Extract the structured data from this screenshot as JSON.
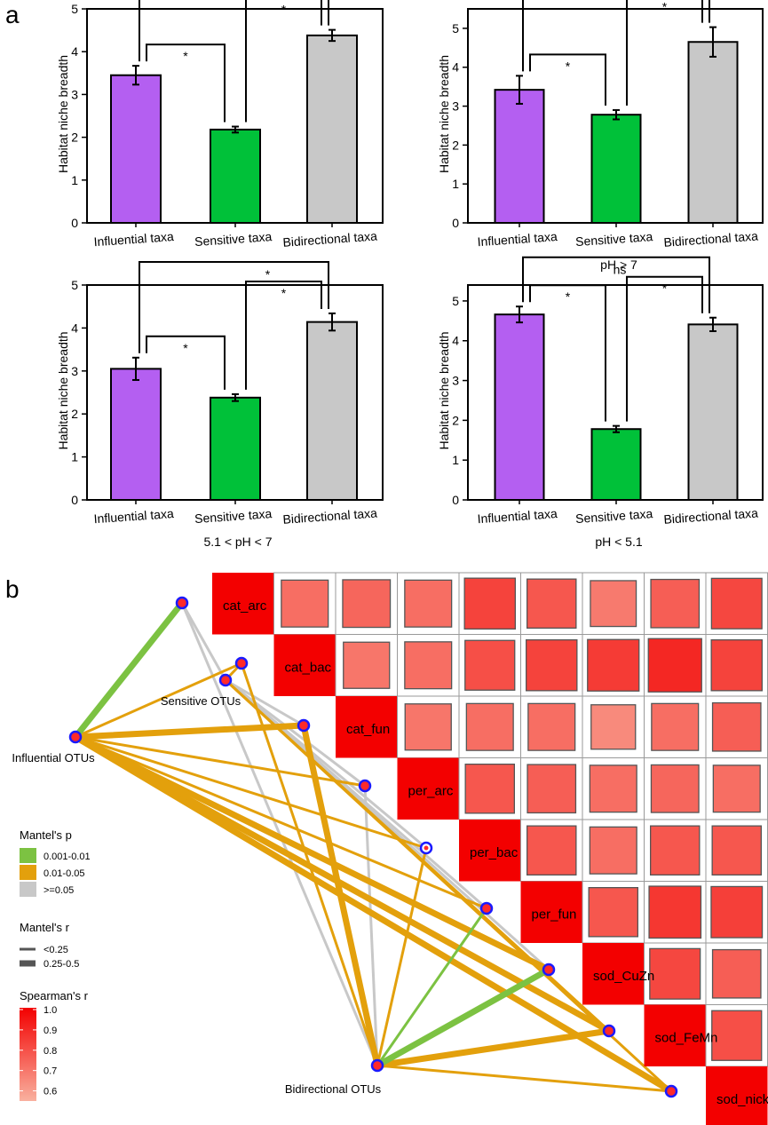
{
  "panel_labels": {
    "a": "a",
    "b": "b"
  },
  "chart_data": [
    {
      "type": "bar",
      "panel": "a1",
      "subtitle": "",
      "ylabel": "Habitat niche breadth",
      "ylim": [
        0,
        5
      ],
      "yticks": [
        "0",
        "1",
        "2",
        "3",
        "4",
        "5"
      ],
      "categories": [
        "Influential taxa",
        "Sensitive taxa",
        "Bidirectional taxa"
      ],
      "values": [
        3.45,
        2.18,
        4.38
      ],
      "errors": [
        0.22,
        0.07,
        0.13
      ],
      "colors": [
        "#b45ff1",
        "#00c139",
        "#c8c8c8"
      ],
      "comparisons": [
        {
          "a": 0,
          "b": 1,
          "label": "*"
        },
        {
          "a": 1,
          "b": 2,
          "label": "*"
        },
        {
          "a": 0,
          "b": 2,
          "label": "*"
        }
      ]
    },
    {
      "type": "bar",
      "panel": "a2",
      "subtitle": "pH > 7",
      "ylabel": "Habitat niche breadth",
      "ylim": [
        0,
        5.5
      ],
      "yticks": [
        "0",
        "1",
        "2",
        "3",
        "4",
        "5"
      ],
      "categories": [
        "Influential taxa",
        "Sensitive taxa",
        "Bidirectional taxa"
      ],
      "values": [
        3.42,
        2.78,
        4.65
      ],
      "errors": [
        0.36,
        0.12,
        0.38
      ],
      "colors": [
        "#b45ff1",
        "#00c139",
        "#c8c8c8"
      ],
      "comparisons": [
        {
          "a": 0,
          "b": 1,
          "label": "*"
        },
        {
          "a": 1,
          "b": 2,
          "label": "*"
        },
        {
          "a": 0,
          "b": 2,
          "label": "*"
        }
      ]
    },
    {
      "type": "bar",
      "panel": "a3",
      "subtitle": "5.1 < pH < 7",
      "ylabel": "Habitat niche breadth",
      "ylim": [
        0,
        5
      ],
      "yticks": [
        "0",
        "1",
        "2",
        "3",
        "4",
        "5"
      ],
      "categories": [
        "Influential taxa",
        "Sensitive taxa",
        "Bidirectional taxa"
      ],
      "values": [
        3.05,
        2.38,
        4.14
      ],
      "errors": [
        0.26,
        0.08,
        0.2
      ],
      "colors": [
        "#b45ff1",
        "#00c139",
        "#c8c8c8"
      ],
      "comparisons": [
        {
          "a": 0,
          "b": 1,
          "label": "*"
        },
        {
          "a": 1,
          "b": 2,
          "label": "*"
        },
        {
          "a": 0,
          "b": 2,
          "label": "*"
        }
      ]
    },
    {
      "type": "bar",
      "panel": "a4",
      "subtitle": "pH < 5.1",
      "ylabel": "Habitat niche breadth",
      "ylim": [
        0,
        5.4
      ],
      "yticks": [
        "0",
        "1",
        "2",
        "3",
        "4",
        "5"
      ],
      "categories": [
        "Influential taxa",
        "Sensitive taxa",
        "Bidirectional taxa"
      ],
      "values": [
        4.66,
        1.78,
        4.41
      ],
      "errors": [
        0.2,
        0.08,
        0.17
      ],
      "colors": [
        "#b45ff1",
        "#00c139",
        "#c8c8c8"
      ],
      "comparisons": [
        {
          "a": 0,
          "b": 1,
          "label": "*"
        },
        {
          "a": 1,
          "b": 2,
          "label": "*"
        },
        {
          "a": 0,
          "b": 2,
          "label": "ns"
        }
      ]
    },
    {
      "type": "heatmap",
      "panel": "b",
      "variables": [
        "cat_arc",
        "cat_bac",
        "cat_fun",
        "per_arc",
        "per_bac",
        "per_fun",
        "sod_CuZn",
        "sod_FeMn",
        "sod_nickel"
      ],
      "correlations": [
        [
          1.0,
          0.72,
          0.74,
          0.72,
          0.83,
          0.78,
          0.69,
          0.76,
          0.82
        ],
        [
          0.72,
          1.0,
          0.7,
          0.72,
          0.8,
          0.83,
          0.85,
          0.9,
          0.83
        ],
        [
          0.74,
          0.7,
          1.0,
          0.7,
          0.72,
          0.72,
          0.65,
          0.72,
          0.76
        ],
        [
          0.72,
          0.72,
          0.7,
          1.0,
          0.78,
          0.76,
          0.72,
          0.74,
          0.72
        ],
        [
          0.83,
          0.8,
          0.72,
          0.78,
          1.0,
          0.78,
          0.72,
          0.78,
          0.78
        ],
        [
          0.78,
          0.83,
          0.72,
          0.76,
          0.78,
          1.0,
          0.78,
          0.86,
          0.84
        ],
        [
          0.69,
          0.85,
          0.65,
          0.72,
          0.72,
          0.78,
          1.0,
          0.82,
          0.76
        ],
        [
          0.76,
          0.9,
          0.72,
          0.74,
          0.78,
          0.86,
          0.82,
          1.0,
          0.8
        ],
        [
          0.82,
          0.83,
          0.76,
          0.72,
          0.78,
          0.84,
          0.76,
          0.8,
          1.0
        ]
      ],
      "groups": [
        "Influential OTUs",
        "Sensitive OTUs",
        "Bidirectional OTUs"
      ],
      "mantel_links": [
        {
          "group": 0,
          "var": 0,
          "p": "0.001-0.01",
          "r": "0.25-0.5"
        },
        {
          "group": 0,
          "var": 1,
          "p": "0.01-0.05",
          "r": "<0.25"
        },
        {
          "group": 0,
          "var": 2,
          "p": "0.01-0.05",
          "r": "0.25-0.5"
        },
        {
          "group": 0,
          "var": 3,
          "p": "0.01-0.05",
          "r": "<0.25"
        },
        {
          "group": 0,
          "var": 4,
          "p": "0.01-0.05",
          "r": "<0.25"
        },
        {
          "group": 0,
          "var": 5,
          "p": "0.01-0.05",
          "r": "<0.25"
        },
        {
          "group": 0,
          "var": 6,
          "p": "0.01-0.05",
          "r": "0.25-0.5"
        },
        {
          "group": 0,
          "var": 7,
          "p": "0.01-0.05",
          "r": "0.25-0.5"
        },
        {
          "group": 0,
          "var": 8,
          "p": "0.01-0.05",
          "r": "0.25-0.5"
        },
        {
          "group": 1,
          "var": 0,
          "p": ">=0.05",
          "r": "<0.25"
        },
        {
          "group": 1,
          "var": 1,
          "p": "0.01-0.05",
          "r": "<0.25"
        },
        {
          "group": 1,
          "var": 2,
          "p": ">=0.05",
          "r": "<0.25"
        },
        {
          "group": 1,
          "var": 3,
          "p": ">=0.05",
          "r": "<0.25"
        },
        {
          "group": 1,
          "var": 4,
          "p": ">=0.05",
          "r": "<0.25"
        },
        {
          "group": 1,
          "var": 5,
          "p": ">=0.05",
          "r": "<0.25"
        },
        {
          "group": 1,
          "var": 6,
          "p": ">=0.05",
          "r": "<0.25"
        },
        {
          "group": 1,
          "var": 7,
          "p": "0.01-0.05",
          "r": "<0.25"
        },
        {
          "group": 1,
          "var": 8,
          "p": "0.01-0.05",
          "r": "<0.25"
        },
        {
          "group": 2,
          "var": 0,
          "p": ">=0.05",
          "r": "<0.25"
        },
        {
          "group": 2,
          "var": 1,
          "p": "0.01-0.05",
          "r": "<0.25"
        },
        {
          "group": 2,
          "var": 2,
          "p": "0.01-0.05",
          "r": "0.25-0.5"
        },
        {
          "group": 2,
          "var": 3,
          "p": ">=0.05",
          "r": "<0.25"
        },
        {
          "group": 2,
          "var": 4,
          "p": "0.01-0.05",
          "r": "<0.25"
        },
        {
          "group": 2,
          "var": 5,
          "p": "0.001-0.01",
          "r": "<0.25"
        },
        {
          "group": 2,
          "var": 6,
          "p": "0.001-0.01",
          "r": "0.25-0.5"
        },
        {
          "group": 2,
          "var": 7,
          "p": "0.01-0.05",
          "r": "0.25-0.5"
        },
        {
          "group": 2,
          "var": 8,
          "p": "0.01-0.05",
          "r": "<0.25"
        }
      ]
    }
  ],
  "legend": {
    "p_title": "Mantel's p",
    "p_items": [
      {
        "label": "0.001-0.01",
        "color": "#7cc242"
      },
      {
        "label": "0.01-0.05",
        "color": "#e3a00c"
      },
      {
        "label": ">=0.05",
        "color": "#c8c8c8"
      }
    ],
    "r_title": "Mantel's r",
    "r_items": [
      {
        "label": "<0.25"
      },
      {
        "label": "0.25-0.5"
      }
    ],
    "spearman_title": "Spearman's r",
    "spearman_ticks": [
      "1.0",
      "0.9",
      "0.8",
      "0.7",
      "0.6"
    ],
    "spearman_range": [
      0.55,
      1.0
    ]
  },
  "colors": {
    "axis": "#000000",
    "heat_low": "#f9b19f",
    "heat_high": "#f30000",
    "node_fill": "#ff2a2a",
    "node_stroke": "#1a1aff"
  }
}
